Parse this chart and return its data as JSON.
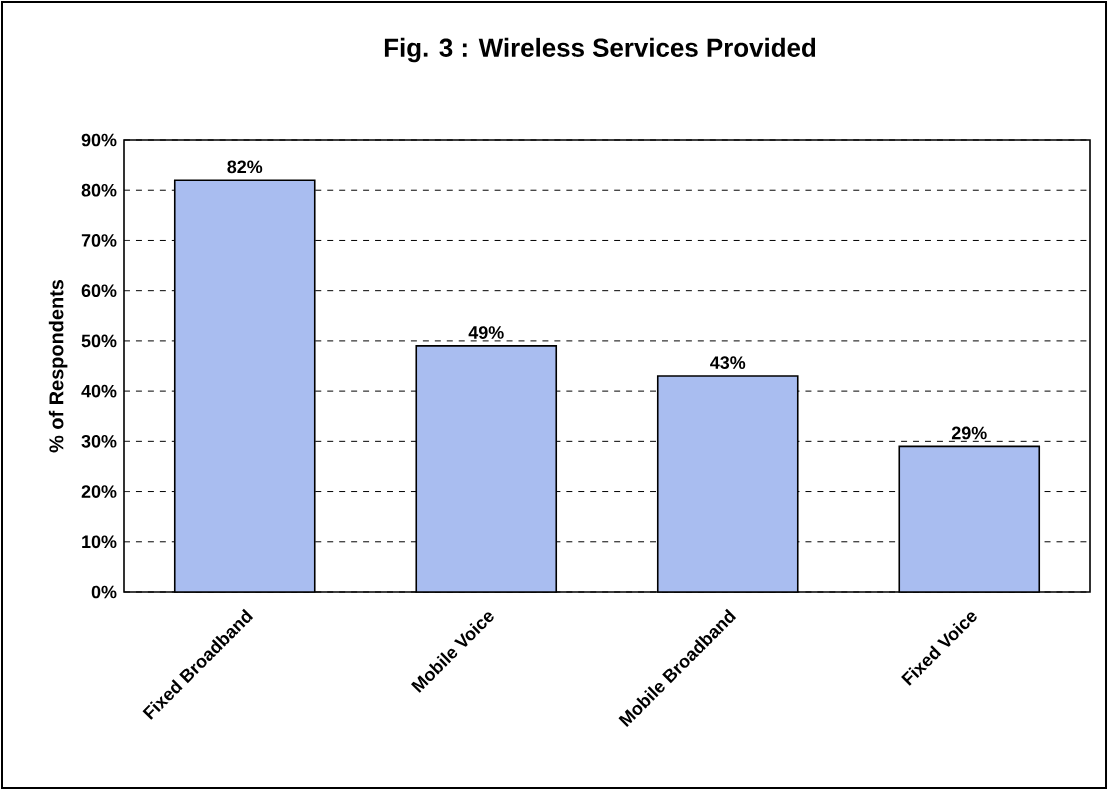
{
  "chart_data": {
    "type": "bar",
    "title": "Fig. 3 :  Wireless Services Provided",
    "ylabel": "% of Respondents",
    "categories": [
      "Fixed Broadband",
      "Mobile Voice",
      "Mobile Broadband",
      "Fixed Voice"
    ],
    "values": [
      82,
      49,
      43,
      29
    ],
    "value_labels": [
      "82%",
      "49%",
      "43%",
      "29%"
    ],
    "color": "#a9bdf0",
    "ylim": [
      0,
      90
    ],
    "yticks": [
      {
        "value": 0,
        "label": "0%"
      },
      {
        "value": 10,
        "label": "10%"
      },
      {
        "value": 20,
        "label": "20%"
      },
      {
        "value": 30,
        "label": "30%"
      },
      {
        "value": 40,
        "label": "40%"
      },
      {
        "value": 50,
        "label": "50%"
      },
      {
        "value": 60,
        "label": "60%"
      },
      {
        "value": 70,
        "label": "70%"
      },
      {
        "value": 80,
        "label": "80%"
      },
      {
        "value": 90,
        "label": "90%"
      }
    ],
    "grid": "y"
  }
}
